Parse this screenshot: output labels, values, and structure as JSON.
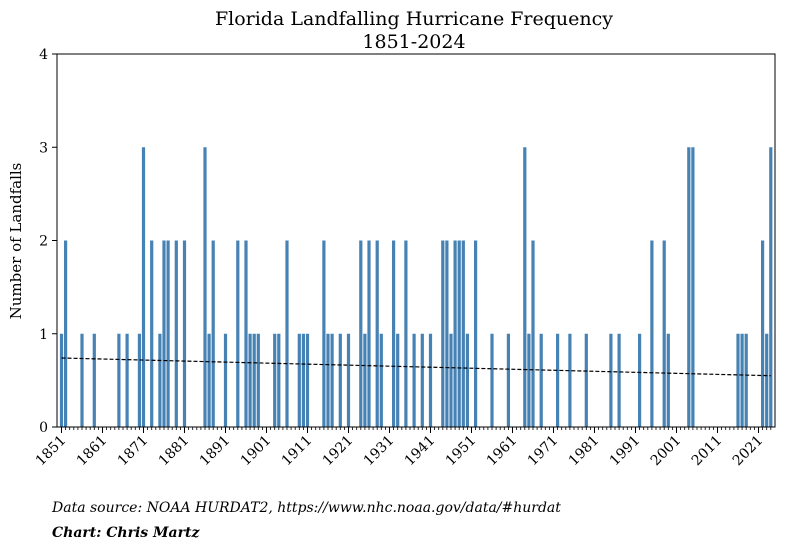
{
  "chart_data": {
    "type": "bar",
    "title": "Florida Landfalling Hurricane Frequency",
    "subtitle": "1851-2024",
    "xlabel": "",
    "ylabel": "Number of Landfalls",
    "xlim": [
      1851,
      2024
    ],
    "ylim": [
      0,
      4
    ],
    "yticks": [
      0,
      1,
      2,
      3,
      4
    ],
    "xticks": [
      1851,
      1861,
      1871,
      1881,
      1891,
      1901,
      1911,
      1921,
      1931,
      1941,
      1951,
      1961,
      1971,
      1981,
      1991,
      2001,
      2011,
      2021
    ],
    "grid": false,
    "bar_color": "#4682b4",
    "trend_color": "#000000",
    "trend": {
      "start": 0.74,
      "end": 0.55
    },
    "x": [
      1851,
      1852,
      1856,
      1859,
      1865,
      1867,
      1870,
      1871,
      1873,
      1875,
      1876,
      1877,
      1879,
      1881,
      1886,
      1887,
      1888,
      1891,
      1894,
      1896,
      1897,
      1898,
      1899,
      1903,
      1904,
      1906,
      1909,
      1910,
      1911,
      1915,
      1916,
      1917,
      1919,
      1921,
      1924,
      1925,
      1926,
      1928,
      1929,
      1932,
      1933,
      1935,
      1937,
      1939,
      1941,
      1944,
      1945,
      1946,
      1947,
      1948,
      1949,
      1950,
      1952,
      1956,
      1960,
      1964,
      1965,
      1966,
      1968,
      1972,
      1975,
      1979,
      1985,
      1987,
      1992,
      1995,
      1998,
      1999,
      2004,
      2005,
      2016,
      2017,
      2018,
      2022,
      2023,
      2024
    ],
    "values": [
      1,
      2,
      1,
      1,
      1,
      1,
      1,
      3,
      2,
      1,
      2,
      2,
      2,
      2,
      3,
      1,
      2,
      1,
      2,
      2,
      1,
      1,
      1,
      1,
      1,
      2,
      1,
      1,
      1,
      2,
      1,
      1,
      1,
      1,
      2,
      1,
      2,
      2,
      1,
      2,
      1,
      2,
      1,
      1,
      1,
      2,
      2,
      1,
      2,
      2,
      2,
      1,
      2,
      1,
      1,
      3,
      1,
      2,
      1,
      1,
      1,
      1,
      1,
      1,
      1,
      2,
      2,
      1,
      3,
      3,
      1,
      1,
      1,
      2,
      1,
      3
    ]
  },
  "footer": {
    "source": "Data source: NOAA HURDAT2, https://www.nhc.noaa.gov/data/#hurdat",
    "credit": "Chart: Chris Martz"
  }
}
